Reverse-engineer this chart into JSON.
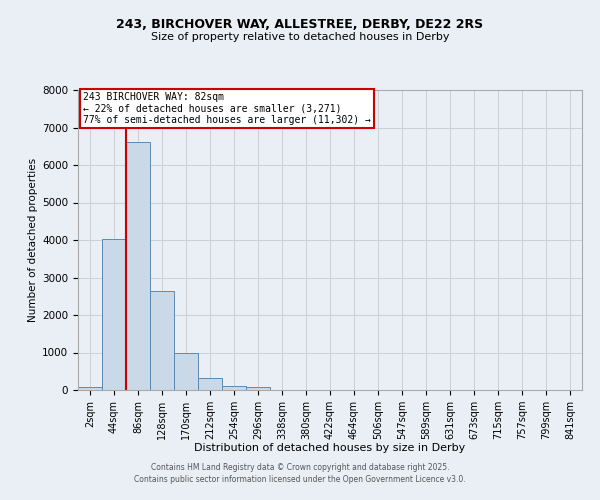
{
  "title_line1": "243, BIRCHOVER WAY, ALLESTREE, DERBY, DE22 2RS",
  "title_line2": "Size of property relative to detached houses in Derby",
  "xlabel": "Distribution of detached houses by size in Derby",
  "ylabel": "Number of detached properties",
  "categories": [
    "2sqm",
    "44sqm",
    "86sqm",
    "128sqm",
    "170sqm",
    "212sqm",
    "254sqm",
    "296sqm",
    "338sqm",
    "380sqm",
    "422sqm",
    "464sqm",
    "506sqm",
    "547sqm",
    "589sqm",
    "631sqm",
    "673sqm",
    "715sqm",
    "757sqm",
    "799sqm",
    "841sqm"
  ],
  "values": [
    70,
    4030,
    6620,
    2650,
    1000,
    320,
    110,
    70,
    0,
    0,
    0,
    0,
    0,
    0,
    0,
    0,
    0,
    0,
    0,
    0,
    0
  ],
  "bar_color": "#c9d9e8",
  "bar_edge_color": "#5a8ab5",
  "red_line_index": 2,
  "annotation_title": "243 BIRCHOVER WAY: 82sqm",
  "annotation_line2": "← 22% of detached houses are smaller (3,271)",
  "annotation_line3": "77% of semi-detached houses are larger (11,302) →",
  "annotation_box_facecolor": "#ffffff",
  "annotation_box_edgecolor": "#cc0000",
  "ylim": [
    0,
    8000
  ],
  "yticks": [
    0,
    1000,
    2000,
    3000,
    4000,
    5000,
    6000,
    7000,
    8000
  ],
  "grid_color": "#c8d0d8",
  "background_color": "#eaeff5",
  "footer_line1": "Contains HM Land Registry data © Crown copyright and database right 2025.",
  "footer_line2": "Contains public sector information licensed under the Open Government Licence v3.0."
}
